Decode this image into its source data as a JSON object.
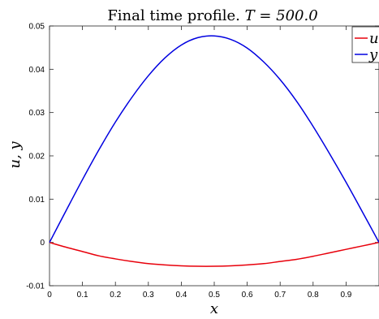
{
  "chart_data": {
    "type": "line",
    "title": "Final time profile. ",
    "title_math": "T = 500.0",
    "xlabel": "x",
    "ylabel": "u, y",
    "xlim": [
      0,
      1
    ],
    "ylim": [
      -0.01,
      0.05
    ],
    "x_ticks": [
      0,
      0.1,
      0.2,
      0.3,
      0.4,
      0.5,
      0.6,
      0.7,
      0.8,
      0.9
    ],
    "x_tick_labels": [
      "0",
      "0.1",
      "0.2",
      "0.3",
      "0.4",
      "0.5",
      "0.6",
      "0.7",
      "0.8",
      "0.9"
    ],
    "y_ticks": [
      -0.01,
      0,
      0.01,
      0.02,
      0.03,
      0.04,
      0.05
    ],
    "y_tick_labels": [
      "-0.01",
      "0",
      "0.01",
      "0.02",
      "0.03",
      "0.04",
      "0.05"
    ],
    "grid": false,
    "legend_position": "top-right",
    "x": [
      0,
      0.05,
      0.1,
      0.15,
      0.2,
      0.25,
      0.3,
      0.35,
      0.4,
      0.45,
      0.5,
      0.55,
      0.6,
      0.65,
      0.7,
      0.75,
      0.8,
      0.85,
      0.9,
      0.95,
      1.0
    ],
    "series": [
      {
        "name": "u",
        "color": "#e8000b",
        "values": [
          0,
          -0.0011,
          -0.0021,
          -0.0031,
          -0.0038,
          -0.0044,
          -0.0049,
          -0.0052,
          -0.0054,
          -0.0055,
          -0.0055,
          -0.0054,
          -0.0052,
          -0.0049,
          -0.0044,
          -0.0039,
          -0.0032,
          -0.0024,
          -0.0016,
          -0.0008,
          0
        ]
      },
      {
        "name": "y",
        "color": "#0000e0",
        "values": [
          0,
          0.0073,
          0.0145,
          0.0214,
          0.0278,
          0.0335,
          0.0385,
          0.0426,
          0.0456,
          0.0473,
          0.0477,
          0.0469,
          0.0449,
          0.0417,
          0.0376,
          0.0326,
          0.0268,
          0.0205,
          0.0139,
          0.007,
          0
        ]
      }
    ]
  }
}
